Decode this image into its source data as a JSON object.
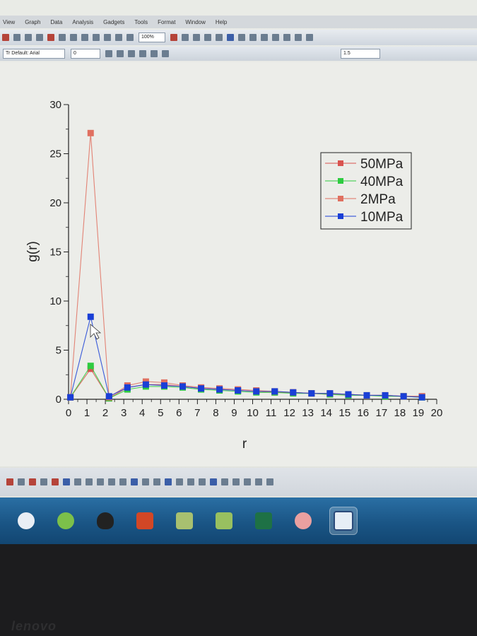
{
  "menu": {
    "items": [
      "View",
      "Graph",
      "Data",
      "Analysis",
      "Gadgets",
      "Tools",
      "Format",
      "Window",
      "Help"
    ]
  },
  "toolbar": {
    "zoom": "100%",
    "font_name": "Tr Default: Arial",
    "font_size": "0",
    "line_width": "1.5"
  },
  "chart_data": {
    "type": "line",
    "xlabel": "r",
    "ylabel": "g(r)",
    "xlim": [
      0,
      20
    ],
    "ylim": [
      0,
      30
    ],
    "x_ticks": [
      "0",
      "1",
      "2",
      "3",
      "4",
      "5",
      "6",
      "7",
      "8",
      "9",
      "10",
      "11",
      "12",
      "13",
      "14",
      "15",
      "16",
      "17",
      "18",
      "19",
      "20"
    ],
    "y_ticks": [
      "0",
      "5",
      "10",
      "15",
      "20",
      "25",
      "30"
    ],
    "legend_position": "top-right",
    "x": [
      0.1,
      1.2,
      2.2,
      3.2,
      4.2,
      5.2,
      6.2,
      7.2,
      8.2,
      9.2,
      10.2,
      11.2,
      12.2,
      13.2,
      14.2,
      15.2,
      16.2,
      17.2,
      18.2,
      19.2
    ],
    "series": [
      {
        "name": "50MPa",
        "color": "#d9534f",
        "values": [
          0.2,
          3.1,
          0.1,
          1.2,
          1.5,
          1.5,
          1.3,
          1.1,
          1.0,
          0.9,
          0.8,
          0.7,
          0.7,
          0.6,
          0.5,
          0.5,
          0.4,
          0.4,
          0.3,
          0.3
        ]
      },
      {
        "name": "40MPa",
        "color": "#2ecc40",
        "values": [
          0.2,
          3.4,
          0.1,
          1.0,
          1.3,
          1.3,
          1.2,
          1.0,
          0.9,
          0.8,
          0.7,
          0.7,
          0.6,
          0.6,
          0.5,
          0.4,
          0.4,
          0.3,
          0.3,
          0.2
        ]
      },
      {
        "name": "2MPa",
        "color": "#e07060",
        "values": [
          0.2,
          27.1,
          0.2,
          1.4,
          1.8,
          1.7,
          1.4,
          1.2,
          1.1,
          1.0,
          0.9,
          0.8,
          0.7,
          0.6,
          0.6,
          0.5,
          0.4,
          0.4,
          0.3,
          0.3
        ]
      },
      {
        "name": "10MPa",
        "color": "#1a3fd6",
        "values": [
          0.2,
          8.4,
          0.3,
          1.2,
          1.5,
          1.4,
          1.3,
          1.1,
          1.0,
          0.9,
          0.8,
          0.8,
          0.7,
          0.6,
          0.6,
          0.5,
          0.4,
          0.4,
          0.3,
          0.2
        ]
      }
    ]
  }
}
